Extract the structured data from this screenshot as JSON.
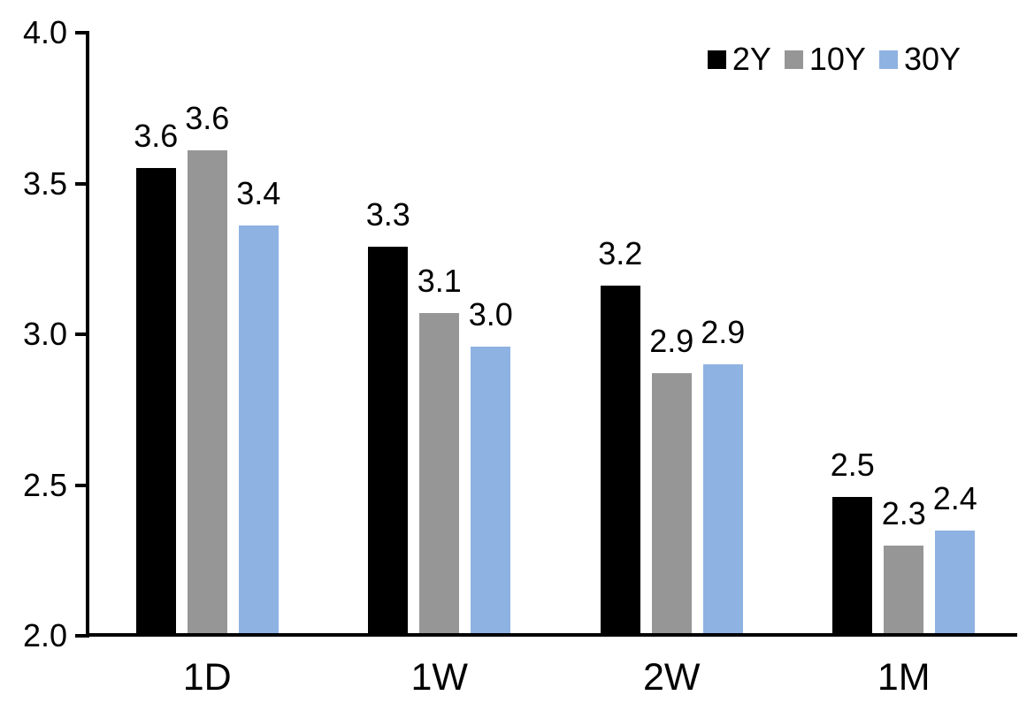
{
  "chart_data": {
    "type": "bar",
    "title": "",
    "xlabel": "",
    "ylabel": "",
    "categories": [
      "1D",
      "1W",
      "2W",
      "1M"
    ],
    "series": [
      {
        "name": "2Y",
        "color": "#000000",
        "values": [
          3.55,
          3.29,
          3.16,
          2.46
        ],
        "labels": [
          "3.6",
          "3.3",
          "3.2",
          "2.5"
        ]
      },
      {
        "name": "10Y",
        "color": "#969696",
        "values": [
          3.61,
          3.07,
          2.87,
          2.3
        ],
        "labels": [
          "3.6",
          "3.1",
          "2.9",
          "2.3"
        ]
      },
      {
        "name": "30Y",
        "color": "#8EB2E2",
        "values": [
          3.36,
          2.96,
          2.9,
          2.35
        ],
        "labels": [
          "3.4",
          "3.0",
          "2.9",
          "2.4"
        ]
      }
    ],
    "ylim": [
      2.0,
      4.0
    ],
    "yticks": [
      "2.0",
      "2.5",
      "3.0",
      "3.5",
      "4.0"
    ],
    "grid": false,
    "legend_position": "top-right",
    "axis_color": "#000000",
    "background": "#FFFFFF"
  }
}
